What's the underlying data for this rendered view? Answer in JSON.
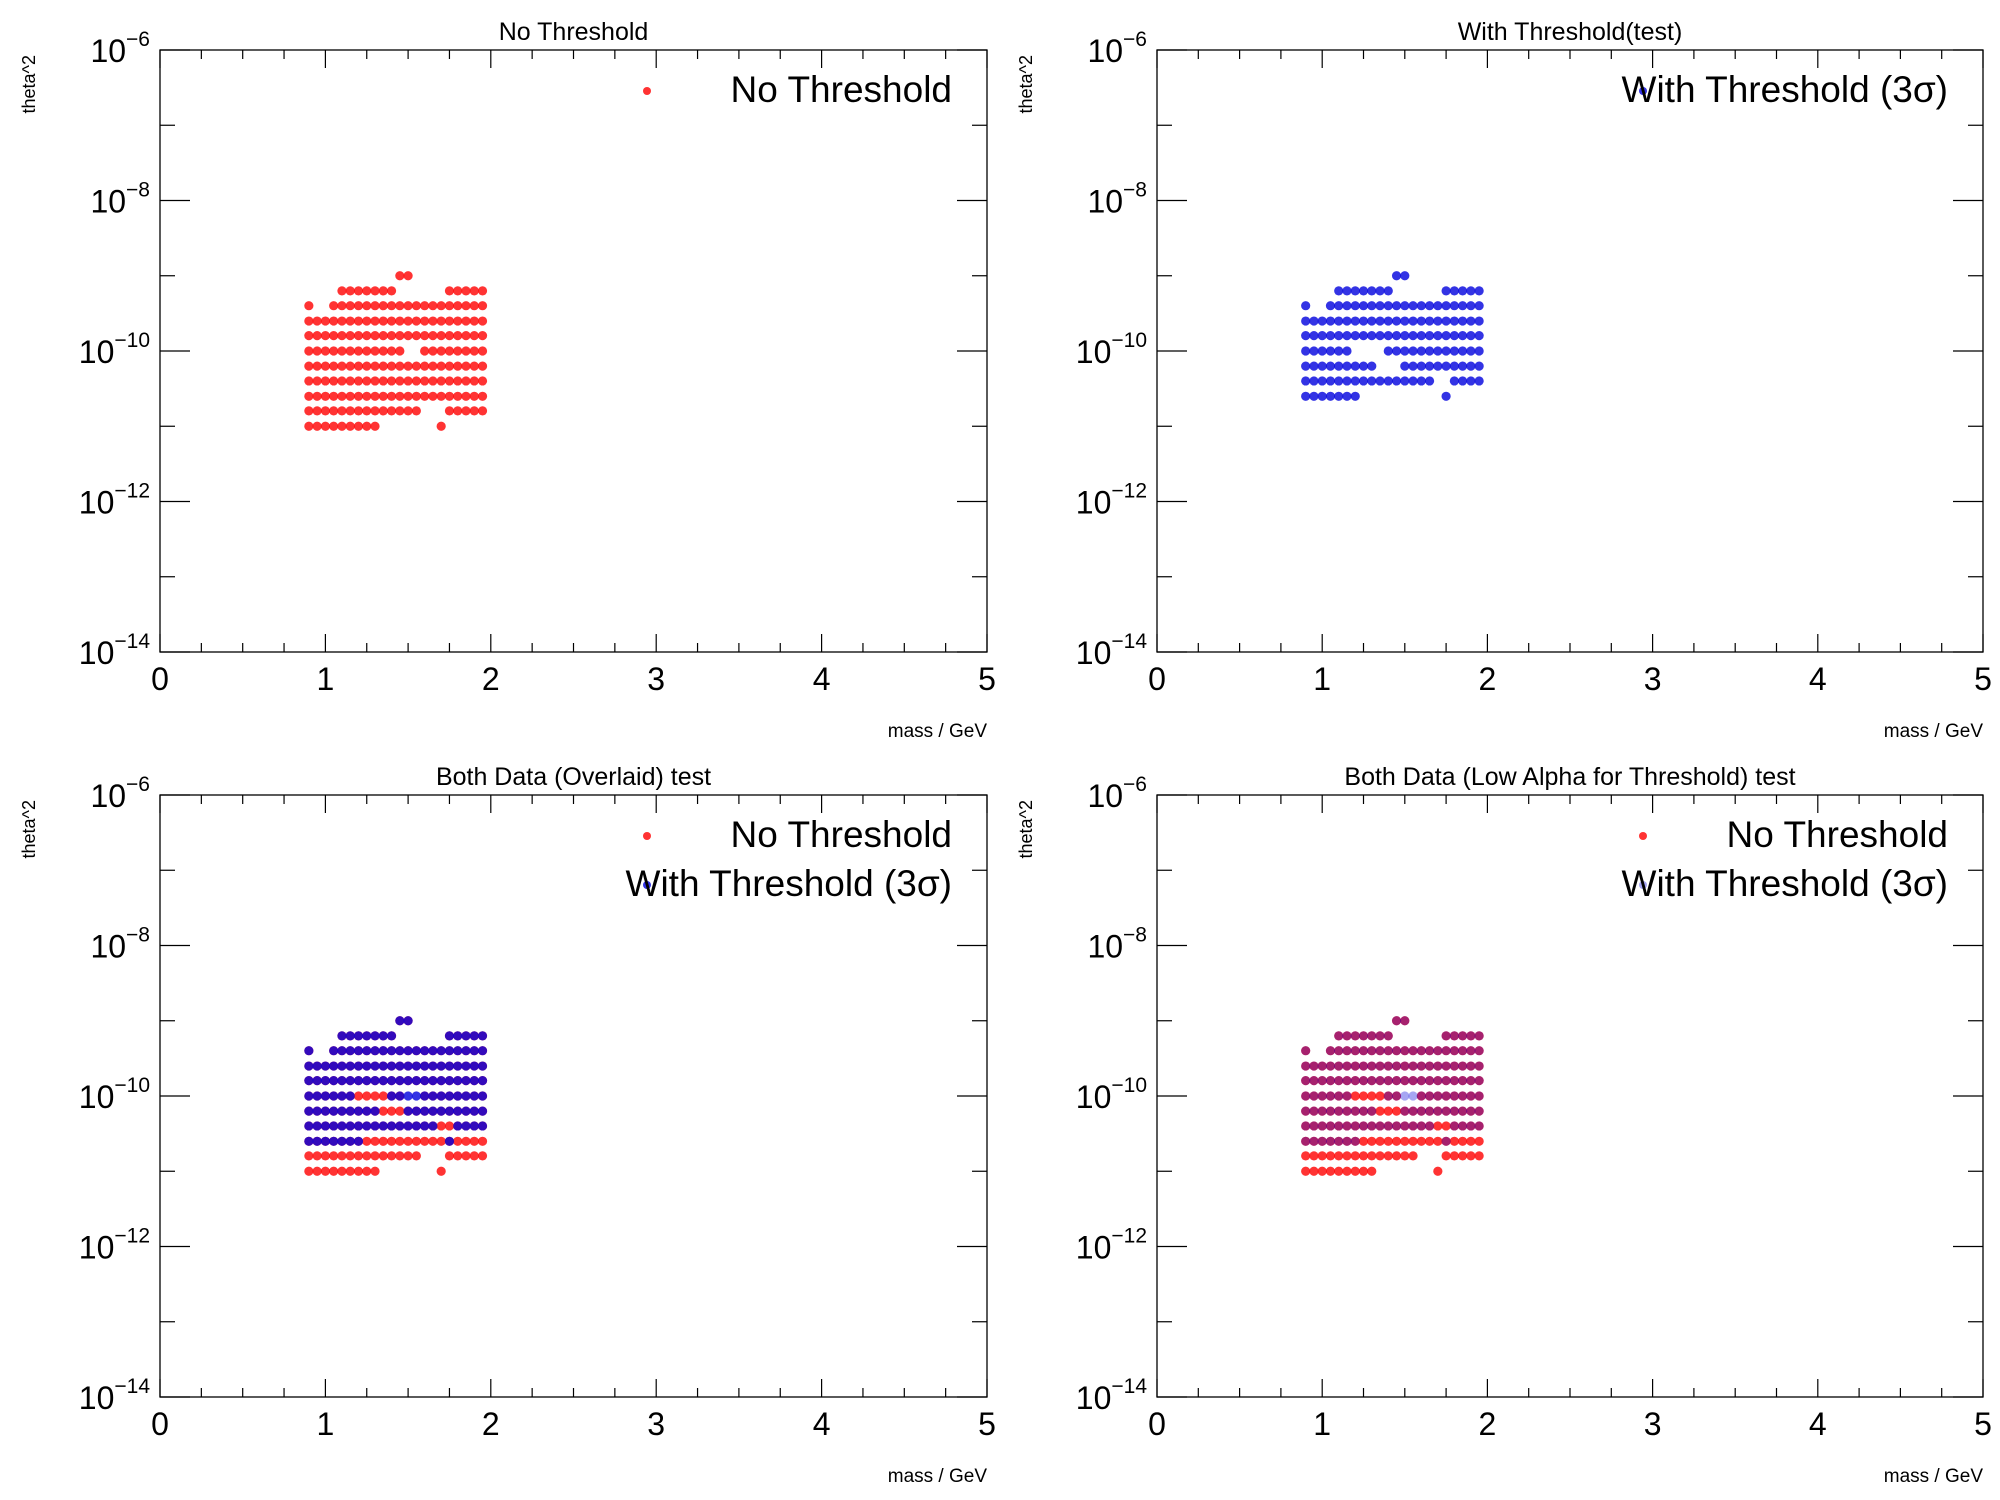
{
  "colors": {
    "no_threshold": "#ff0000",
    "with_threshold": "#0000dd",
    "axis": "#000000"
  },
  "chart_data": [
    {
      "type": "scatter",
      "title": "No Threshold",
      "xlabel": "mass / GeV",
      "ylabel": "theta^2",
      "xlim": [
        0,
        5
      ],
      "ylim": [
        1e-14,
        1e-06
      ],
      "yscale": "log",
      "xticks": [
        "0",
        "1",
        "2",
        "3",
        "4",
        "5"
      ],
      "yticks": [
        {
          "base": "10",
          "exp": "−6"
        },
        {
          "base": "10",
          "exp": "−8"
        },
        {
          "base": "10",
          "exp": "−10"
        },
        {
          "base": "10",
          "exp": "−12"
        },
        {
          "base": "10",
          "exp": "−14"
        }
      ],
      "legend_position": "top-right",
      "series": [
        {
          "name": "No Threshold",
          "color": "#ff0000",
          "alpha": 0.8,
          "x_step": 0.05,
          "rows": [
            {
              "y": 1e-09,
              "x_ranges": [
                [
                  1.45,
                  1.5
                ]
              ]
            },
            {
              "y": 6.3e-10,
              "x_ranges": [
                [
                  1.1,
                  1.4
                ],
                [
                  1.75,
                  1.95
                ]
              ]
            },
            {
              "y": 4e-10,
              "x_ranges": [
                [
                  0.9,
                  0.9
                ],
                [
                  1.05,
                  1.95
                ]
              ]
            },
            {
              "y": 2.5e-10,
              "x_ranges": [
                [
                  0.9,
                  1.95
                ]
              ]
            },
            {
              "y": 1.6e-10,
              "x_ranges": [
                [
                  0.9,
                  1.95
                ]
              ]
            },
            {
              "y": 1e-10,
              "x_ranges": [
                [
                  0.9,
                  1.45
                ],
                [
                  1.6,
                  1.95
                ]
              ]
            },
            {
              "y": 6.3e-11,
              "x_ranges": [
                [
                  0.9,
                  1.95
                ]
              ]
            },
            {
              "y": 4e-11,
              "x_ranges": [
                [
                  0.9,
                  1.95
                ]
              ]
            },
            {
              "y": 2.5e-11,
              "x_ranges": [
                [
                  0.9,
                  1.95
                ]
              ]
            },
            {
              "y": 1.6e-11,
              "x_ranges": [
                [
                  0.9,
                  1.55
                ],
                [
                  1.75,
                  1.95
                ]
              ]
            },
            {
              "y": 1e-11,
              "x_ranges": [
                [
                  0.9,
                  1.3
                ],
                [
                  1.7,
                  1.7
                ]
              ]
            }
          ]
        }
      ]
    },
    {
      "type": "scatter",
      "title": "With Threshold(test)",
      "xlabel": "mass / GeV",
      "ylabel": "theta^2",
      "xlim": [
        0,
        5
      ],
      "ylim": [
        1e-14,
        1e-06
      ],
      "yscale": "log",
      "xticks": [
        "0",
        "1",
        "2",
        "3",
        "4",
        "5"
      ],
      "yticks": [
        {
          "base": "10",
          "exp": "−6"
        },
        {
          "base": "10",
          "exp": "−8"
        },
        {
          "base": "10",
          "exp": "−10"
        },
        {
          "base": "10",
          "exp": "−12"
        },
        {
          "base": "10",
          "exp": "−14"
        }
      ],
      "legend_position": "top-right",
      "series": [
        {
          "name": "With Threshold (3σ)",
          "color": "#0000dd",
          "alpha": 0.8,
          "x_step": 0.05,
          "rows": [
            {
              "y": 1e-09,
              "x_ranges": [
                [
                  1.45,
                  1.5
                ]
              ]
            },
            {
              "y": 6.3e-10,
              "x_ranges": [
                [
                  1.1,
                  1.4
                ],
                [
                  1.75,
                  1.95
                ]
              ]
            },
            {
              "y": 4e-10,
              "x_ranges": [
                [
                  0.9,
                  0.9
                ],
                [
                  1.05,
                  1.95
                ]
              ]
            },
            {
              "y": 2.5e-10,
              "x_ranges": [
                [
                  0.9,
                  1.95
                ]
              ]
            },
            {
              "y": 1.6e-10,
              "x_ranges": [
                [
                  0.9,
                  1.95
                ]
              ]
            },
            {
              "y": 1e-10,
              "x_ranges": [
                [
                  0.9,
                  1.15
                ],
                [
                  1.4,
                  1.95
                ]
              ]
            },
            {
              "y": 6.3e-11,
              "x_ranges": [
                [
                  0.9,
                  1.3
                ],
                [
                  1.5,
                  1.95
                ]
              ]
            },
            {
              "y": 4e-11,
              "x_ranges": [
                [
                  0.9,
                  1.65
                ],
                [
                  1.8,
                  1.95
                ]
              ]
            },
            {
              "y": 2.5e-11,
              "x_ranges": [
                [
                  0.9,
                  1.2
                ],
                [
                  1.75,
                  1.75
                ]
              ]
            }
          ]
        }
      ]
    },
    {
      "type": "scatter",
      "title": "Both Data (Overlaid) test",
      "xlabel": "mass / GeV",
      "ylabel": "theta^2",
      "xlim": [
        0,
        5
      ],
      "ylim": [
        1e-14,
        1e-06
      ],
      "yscale": "log",
      "xticks": [
        "0",
        "1",
        "2",
        "3",
        "4",
        "5"
      ],
      "yticks": [
        {
          "base": "10",
          "exp": "−6"
        },
        {
          "base": "10",
          "exp": "−8"
        },
        {
          "base": "10",
          "exp": "−10"
        },
        {
          "base": "10",
          "exp": "−12"
        },
        {
          "base": "10",
          "exp": "−14"
        }
      ],
      "legend_position": "top-right",
      "series": [
        {
          "name": "No Threshold",
          "color": "#ff0000",
          "alpha": 0.8,
          "x_step": 0.05,
          "rows": [
            {
              "y": 1e-09,
              "x_ranges": [
                [
                  1.45,
                  1.5
                ]
              ]
            },
            {
              "y": 6.3e-10,
              "x_ranges": [
                [
                  1.1,
                  1.4
                ],
                [
                  1.75,
                  1.95
                ]
              ]
            },
            {
              "y": 4e-10,
              "x_ranges": [
                [
                  0.9,
                  0.9
                ],
                [
                  1.05,
                  1.95
                ]
              ]
            },
            {
              "y": 2.5e-10,
              "x_ranges": [
                [
                  0.9,
                  1.95
                ]
              ]
            },
            {
              "y": 1.6e-10,
              "x_ranges": [
                [
                  0.9,
                  1.95
                ]
              ]
            },
            {
              "y": 1e-10,
              "x_ranges": [
                [
                  0.9,
                  1.45
                ],
                [
                  1.6,
                  1.95
                ]
              ]
            },
            {
              "y": 6.3e-11,
              "x_ranges": [
                [
                  0.9,
                  1.95
                ]
              ]
            },
            {
              "y": 4e-11,
              "x_ranges": [
                [
                  0.9,
                  1.95
                ]
              ]
            },
            {
              "y": 2.5e-11,
              "x_ranges": [
                [
                  0.9,
                  1.95
                ]
              ]
            },
            {
              "y": 1.6e-11,
              "x_ranges": [
                [
                  0.9,
                  1.55
                ],
                [
                  1.75,
                  1.95
                ]
              ]
            },
            {
              "y": 1e-11,
              "x_ranges": [
                [
                  0.9,
                  1.3
                ],
                [
                  1.7,
                  1.7
                ]
              ]
            }
          ]
        },
        {
          "name": "With Threshold (3σ)",
          "color": "#0000dd",
          "alpha": 0.8,
          "x_step": 0.05,
          "rows": [
            {
              "y": 1e-09,
              "x_ranges": [
                [
                  1.45,
                  1.5
                ]
              ]
            },
            {
              "y": 6.3e-10,
              "x_ranges": [
                [
                  1.1,
                  1.4
                ],
                [
                  1.75,
                  1.95
                ]
              ]
            },
            {
              "y": 4e-10,
              "x_ranges": [
                [
                  0.9,
                  0.9
                ],
                [
                  1.05,
                  1.95
                ]
              ]
            },
            {
              "y": 2.5e-10,
              "x_ranges": [
                [
                  0.9,
                  1.95
                ]
              ]
            },
            {
              "y": 1.6e-10,
              "x_ranges": [
                [
                  0.9,
                  1.95
                ]
              ]
            },
            {
              "y": 1e-10,
              "x_ranges": [
                [
                  0.9,
                  1.15
                ],
                [
                  1.4,
                  1.95
                ]
              ]
            },
            {
              "y": 6.3e-11,
              "x_ranges": [
                [
                  0.9,
                  1.3
                ],
                [
                  1.5,
                  1.95
                ]
              ]
            },
            {
              "y": 4e-11,
              "x_ranges": [
                [
                  0.9,
                  1.65
                ],
                [
                  1.8,
                  1.95
                ]
              ]
            },
            {
              "y": 2.5e-11,
              "x_ranges": [
                [
                  0.9,
                  1.2
                ],
                [
                  1.75,
                  1.75
                ]
              ]
            }
          ]
        }
      ]
    },
    {
      "type": "scatter",
      "title": "Both Data (Low Alpha for Threshold) test",
      "xlabel": "mass / GeV",
      "ylabel": "theta^2",
      "xlim": [
        0,
        5
      ],
      "ylim": [
        1e-14,
        1e-06
      ],
      "yscale": "log",
      "xticks": [
        "0",
        "1",
        "2",
        "3",
        "4",
        "5"
      ],
      "yticks": [
        {
          "base": "10",
          "exp": "−6"
        },
        {
          "base": "10",
          "exp": "−8"
        },
        {
          "base": "10",
          "exp": "−10"
        },
        {
          "base": "10",
          "exp": "−12"
        },
        {
          "base": "10",
          "exp": "−14"
        }
      ],
      "legend_position": "top-right",
      "series": [
        {
          "name": "No Threshold",
          "color": "#ff0000",
          "alpha": 0.8,
          "x_step": 0.05,
          "rows": [
            {
              "y": 1e-09,
              "x_ranges": [
                [
                  1.45,
                  1.5
                ]
              ]
            },
            {
              "y": 6.3e-10,
              "x_ranges": [
                [
                  1.1,
                  1.4
                ],
                [
                  1.75,
                  1.95
                ]
              ]
            },
            {
              "y": 4e-10,
              "x_ranges": [
                [
                  0.9,
                  0.9
                ],
                [
                  1.05,
                  1.95
                ]
              ]
            },
            {
              "y": 2.5e-10,
              "x_ranges": [
                [
                  0.9,
                  1.95
                ]
              ]
            },
            {
              "y": 1.6e-10,
              "x_ranges": [
                [
                  0.9,
                  1.95
                ]
              ]
            },
            {
              "y": 1e-10,
              "x_ranges": [
                [
                  0.9,
                  1.45
                ],
                [
                  1.6,
                  1.95
                ]
              ]
            },
            {
              "y": 6.3e-11,
              "x_ranges": [
                [
                  0.9,
                  1.95
                ]
              ]
            },
            {
              "y": 4e-11,
              "x_ranges": [
                [
                  0.9,
                  1.95
                ]
              ]
            },
            {
              "y": 2.5e-11,
              "x_ranges": [
                [
                  0.9,
                  1.95
                ]
              ]
            },
            {
              "y": 1.6e-11,
              "x_ranges": [
                [
                  0.9,
                  1.55
                ],
                [
                  1.75,
                  1.95
                ]
              ]
            },
            {
              "y": 1e-11,
              "x_ranges": [
                [
                  0.9,
                  1.3
                ],
                [
                  1.7,
                  1.7
                ]
              ]
            }
          ]
        },
        {
          "name": "With Threshold (3σ)",
          "color": "#0000dd",
          "alpha": 0.35,
          "x_step": 0.05,
          "rows": [
            {
              "y": 1e-09,
              "x_ranges": [
                [
                  1.45,
                  1.5
                ]
              ]
            },
            {
              "y": 6.3e-10,
              "x_ranges": [
                [
                  1.1,
                  1.4
                ],
                [
                  1.75,
                  1.95
                ]
              ]
            },
            {
              "y": 4e-10,
              "x_ranges": [
                [
                  0.9,
                  0.9
                ],
                [
                  1.05,
                  1.95
                ]
              ]
            },
            {
              "y": 2.5e-10,
              "x_ranges": [
                [
                  0.9,
                  1.95
                ]
              ]
            },
            {
              "y": 1.6e-10,
              "x_ranges": [
                [
                  0.9,
                  1.95
                ]
              ]
            },
            {
              "y": 1e-10,
              "x_ranges": [
                [
                  0.9,
                  1.15
                ],
                [
                  1.4,
                  1.95
                ]
              ]
            },
            {
              "y": 6.3e-11,
              "x_ranges": [
                [
                  0.9,
                  1.3
                ],
                [
                  1.5,
                  1.95
                ]
              ]
            },
            {
              "y": 4e-11,
              "x_ranges": [
                [
                  0.9,
                  1.65
                ],
                [
                  1.8,
                  1.95
                ]
              ]
            },
            {
              "y": 2.5e-11,
              "x_ranges": [
                [
                  0.9,
                  1.2
                ],
                [
                  1.75,
                  1.75
                ]
              ]
            }
          ]
        }
      ]
    }
  ]
}
